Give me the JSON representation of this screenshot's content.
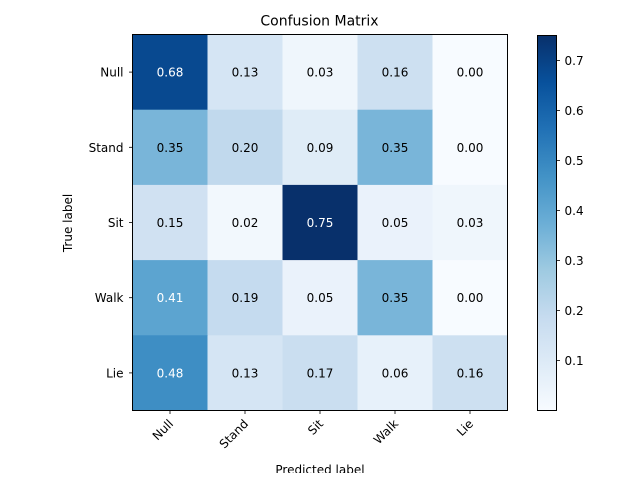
{
  "chart_data": {
    "type": "heatmap",
    "title": "Confusion Matrix",
    "xlabel": "Predicted label",
    "ylabel": "True label",
    "x_categories": [
      "Null",
      "Stand",
      "Sit",
      "Walk",
      "Lie"
    ],
    "y_categories": [
      "Null",
      "Stand",
      "Sit",
      "Walk",
      "Lie"
    ],
    "values": [
      [
        0.68,
        0.13,
        0.03,
        0.16,
        0.0
      ],
      [
        0.35,
        0.2,
        0.09,
        0.35,
        0.0
      ],
      [
        0.15,
        0.02,
        0.75,
        0.05,
        0.03
      ],
      [
        0.41,
        0.19,
        0.05,
        0.35,
        0.0
      ],
      [
        0.48,
        0.13,
        0.17,
        0.06,
        0.16
      ]
    ],
    "value_labels": [
      [
        "0.68",
        "0.13",
        "0.03",
        "0.16",
        "0.00"
      ],
      [
        "0.35",
        "0.20",
        "0.09",
        "0.35",
        "0.00"
      ],
      [
        "0.15",
        "0.02",
        "0.75",
        "0.05",
        "0.03"
      ],
      [
        "0.41",
        "0.19",
        "0.05",
        "0.35",
        "0.00"
      ],
      [
        "0.48",
        "0.13",
        "0.17",
        "0.06",
        "0.16"
      ]
    ],
    "colormap": "Blues",
    "color_range": [
      0.0,
      0.75
    ],
    "colorbar_ticks": [
      0.1,
      0.2,
      0.3,
      0.4,
      0.5,
      0.6,
      0.7
    ],
    "colorbar_tick_labels": [
      "0.1",
      "0.2",
      "0.3",
      "0.4",
      "0.5",
      "0.6",
      "0.7"
    ],
    "grid": false,
    "x_tick_rotation": "45 degrees",
    "colorbar_position": "right"
  }
}
